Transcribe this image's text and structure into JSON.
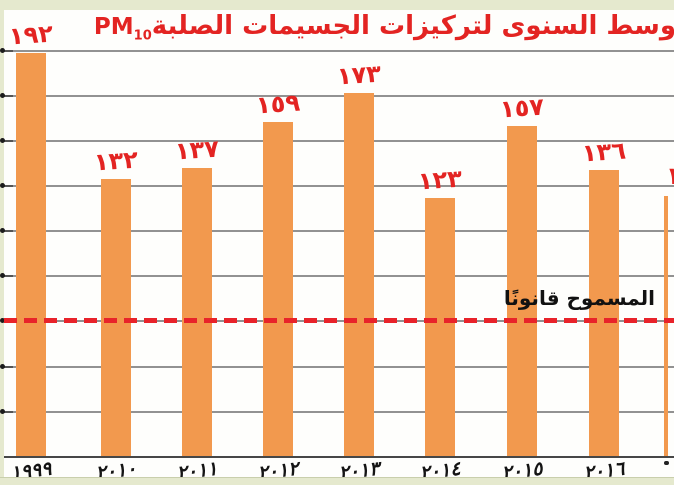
{
  "title": {
    "text_visible": "وسط السنوى لتركيزات الجسيمات الصلبة",
    "pm": "PM",
    "pm_sub": "10",
    "note": "title is cut off at the right image edge",
    "color": "#E32422"
  },
  "chart_data": {
    "type": "bar",
    "title": "وسط السنوى لتركيزات الجسيمات الصلبة PM10",
    "categories": [
      "١٩٩٩",
      "٢٠١٠",
      "٢٠١١",
      "٢٠١٢",
      "٢٠١٣",
      "٢٠١٤",
      "٢٠١٥",
      "٢٠١٦"
    ],
    "values": [
      192,
      132,
      137,
      159,
      173,
      123,
      157,
      136
    ],
    "value_labels": [
      "١٩٢",
      "١٣٢",
      "١٣٧",
      "١٥٩",
      "١٧٣",
      "١٢٣",
      "١٥٧",
      "١٣٦"
    ],
    "xlabel": "",
    "ylabel": "",
    "ylim_estimated": [
      0,
      200
    ],
    "grid": "on",
    "gridline_count": 9,
    "y_axis": {
      "tick_labels": "cut off at left image edge, only trailing dots visible"
    },
    "reference_line": {
      "label": "المسموح قانونًا",
      "style": "dashed",
      "color": "#E8232A",
      "position": "on 7th gridline from top"
    },
    "partial_ninth_bar": {
      "visible": true,
      "bar_edge_only": true,
      "value_label_fragment": "١",
      "year_label_fragment": "cut off at right edge"
    },
    "bar_color": "#F2994E",
    "label_color": "#E32422",
    "legend": "none"
  }
}
